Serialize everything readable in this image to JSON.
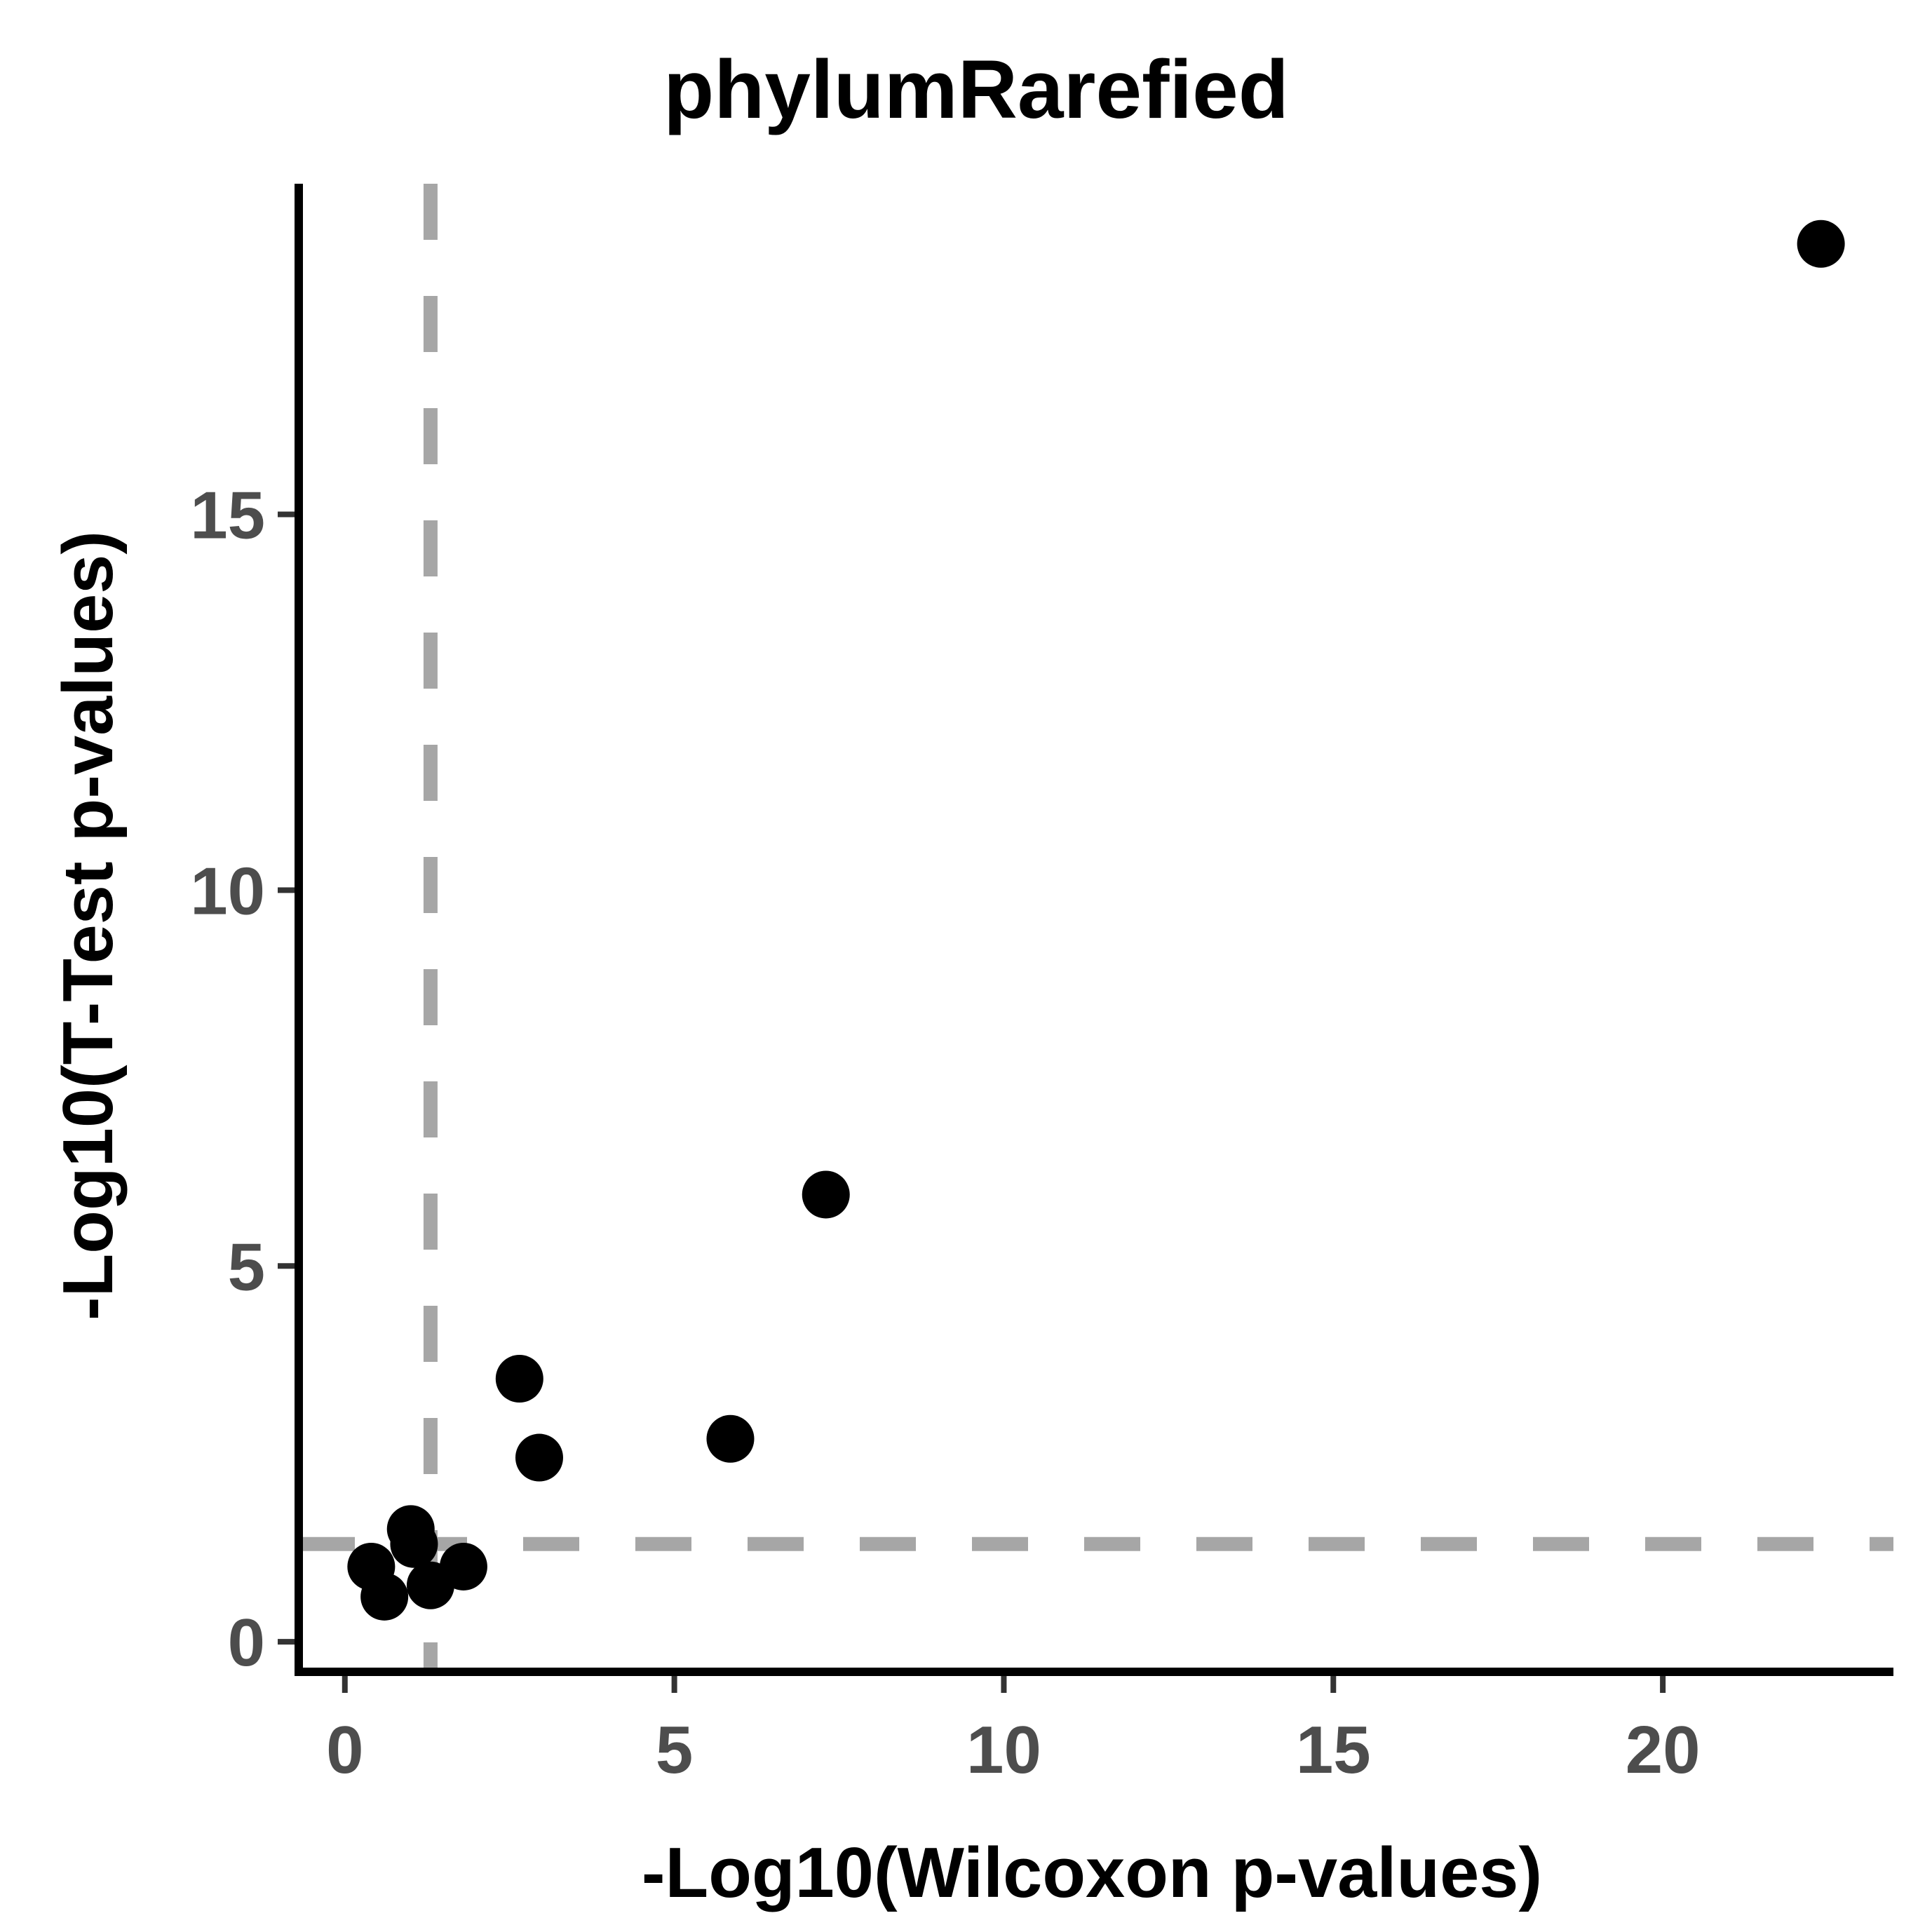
{
  "chart_data": {
    "type": "scatter",
    "title": "phylumRarefied",
    "xlabel": "-Log10(Wilcoxon p-values)",
    "ylabel": "-Log10(T-Test p-values)",
    "xlim": [
      -0.7,
      23.5
    ],
    "ylim": [
      -0.4,
      19.4
    ],
    "xticks": [
      0,
      5,
      10,
      15,
      20
    ],
    "yticks": [
      0,
      5,
      10,
      15
    ],
    "xtick_labels": [
      "0",
      "5",
      "10",
      "15",
      "20"
    ],
    "ytick_labels": [
      "0",
      "5",
      "10",
      "15"
    ],
    "grid": false,
    "reference_lines": {
      "vertical_x": 1.3,
      "horizontal_y": 1.3,
      "style": "dashed",
      "color": "#a6a6a6"
    },
    "point_color": "#000000",
    "points": [
      {
        "x": 0.4,
        "y": 1.0
      },
      {
        "x": 0.6,
        "y": 0.6
      },
      {
        "x": 1.0,
        "y": 1.5
      },
      {
        "x": 1.05,
        "y": 1.3
      },
      {
        "x": 1.3,
        "y": 0.75
      },
      {
        "x": 1.8,
        "y": 1.0
      },
      {
        "x": 2.65,
        "y": 3.5
      },
      {
        "x": 2.95,
        "y": 2.45
      },
      {
        "x": 5.85,
        "y": 2.7
      },
      {
        "x": 7.3,
        "y": 5.95
      },
      {
        "x": 22.4,
        "y": 18.6
      }
    ]
  }
}
